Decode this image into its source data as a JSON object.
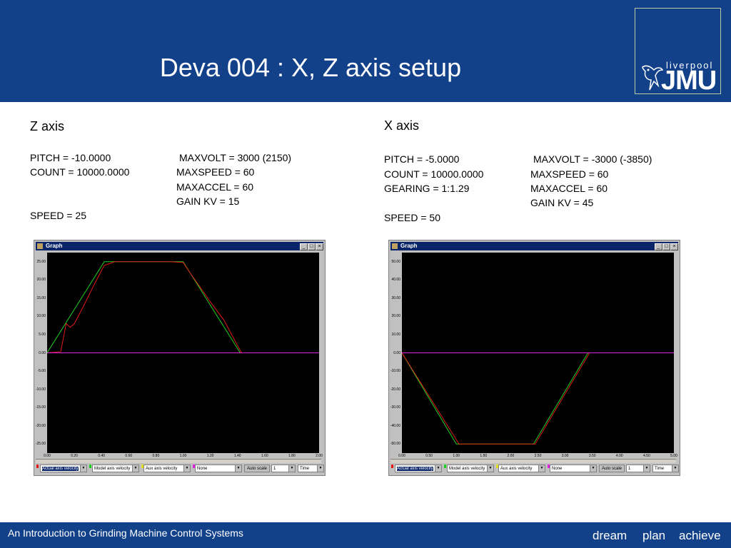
{
  "slide": {
    "title": "Deva 004 : X, Z axis setup",
    "logo": {
      "top": "liverpool",
      "main": "JMU"
    },
    "footer": "An Introduction to Grinding Machine Control Systems",
    "tagline": [
      "dream",
      "plan",
      "achieve"
    ]
  },
  "z_axis": {
    "title": "Z axis",
    "pitch": "PITCH = -10.0000",
    "count": "COUNT = 10000.0000",
    "speed": "SPEED = 25",
    "maxvolt": "MAXVOLT = 3000 (2150)",
    "maxspeed": "MAXSPEED = 60",
    "maxaccel": "MAXACCEL = 60",
    "gain": "GAIN KV = 15"
  },
  "x_axis": {
    "title": "X axis",
    "pitch": "PITCH = -5.0000",
    "count": "COUNT = 10000.0000",
    "gearing": "GEARING = 1:1.29",
    "speed": "SPEED = 50",
    "maxvolt": "MAXVOLT = -3000 (-3850)",
    "maxspeed": "MAXSPEED = 60",
    "maxaccel": "MAXACCEL = 60",
    "gain": "GAIN KV = 45"
  },
  "graph_window": {
    "title": "Graph",
    "controls": {
      "actual": "Actual axis velocity",
      "model": "Model axis velocity",
      "aux": "Aux axis velocity",
      "none": "None",
      "autoscale": "Auto scale",
      "scale_value": "1",
      "xmode": "Time"
    }
  },
  "colors": {
    "banner": "#12418a",
    "plot_bg": "#000000",
    "actual": "#e01818",
    "model": "#1fd11f",
    "zero": "#e020e0"
  },
  "chart_data": [
    {
      "type": "line",
      "name": "z-axis-graph",
      "xlim": [
        0,
        2.0
      ],
      "ylim": [
        -27.5,
        27.5
      ],
      "x_ticks": [
        "0.00",
        "0.20",
        "0.40",
        "0.60",
        "0.80",
        "1.00",
        "1.20",
        "1.40",
        "1.60",
        "1.80",
        "2.00"
      ],
      "y_ticks": [
        "25.00",
        "20.00",
        "15.00",
        "10.00",
        "5.00",
        "0.00",
        "-5.00",
        "-10.00",
        "-15.00",
        "-20.00",
        "-25.00"
      ],
      "series": [
        {
          "name": "Model axis velocity",
          "color": "#1fd11f",
          "x": [
            0.0,
            0.42,
            1.0,
            1.42,
            2.0
          ],
          "y": [
            0,
            25,
            25,
            0,
            0
          ]
        },
        {
          "name": "Actual axis velocity",
          "color": "#e01818",
          "x": [
            0.0,
            0.1,
            0.14,
            0.17,
            0.2,
            0.27,
            0.35,
            0.42,
            0.5,
            0.7,
            0.9,
            1.0,
            1.05,
            1.2,
            1.3,
            1.4,
            1.43,
            1.45
          ],
          "y": [
            0,
            0.3,
            8,
            7,
            8,
            13,
            19,
            24,
            25,
            25,
            25,
            24.8,
            22,
            14,
            9,
            2,
            0,
            0
          ]
        },
        {
          "name": "zero",
          "color": "#e020e0",
          "x": [
            0,
            2.0
          ],
          "y": [
            0,
            0
          ]
        }
      ]
    },
    {
      "type": "line",
      "name": "x-axis-graph",
      "xlim": [
        0,
        5.0
      ],
      "ylim": [
        -55,
        55
      ],
      "x_ticks": [
        "0.00",
        "0.50",
        "1.00",
        "1.50",
        "2.00",
        "2.50",
        "3.00",
        "3.50",
        "4.00",
        "4.50",
        "5.00"
      ],
      "y_ticks": [
        "50.00",
        "40.00",
        "30.00",
        "20.00",
        "10.00",
        "0.00",
        "-10.00",
        "-20.00",
        "-30.00",
        "-40.00",
        "-50.00"
      ],
      "series": [
        {
          "name": "Model axis velocity",
          "color": "#1fd11f",
          "x": [
            0.0,
            1.0,
            2.42,
            3.42,
            5.0
          ],
          "y": [
            0,
            -50,
            -50,
            0,
            0
          ]
        },
        {
          "name": "Actual axis velocity",
          "color": "#e01818",
          "x": [
            0.0,
            1.05,
            2.45,
            3.45,
            3.5
          ],
          "y": [
            0,
            -50,
            -50,
            0,
            0
          ]
        },
        {
          "name": "zero",
          "color": "#e020e0",
          "x": [
            0,
            5.0
          ],
          "y": [
            0,
            0
          ]
        }
      ]
    }
  ]
}
